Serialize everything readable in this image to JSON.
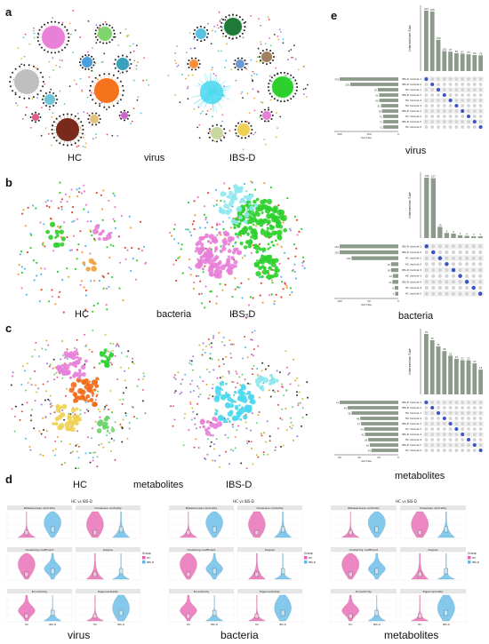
{
  "panel_labels": {
    "a": "a",
    "b": "b",
    "c": "c",
    "d": "d",
    "e": "e"
  },
  "networks": {
    "virus": {
      "left": "HC",
      "center": "virus",
      "right": "IBS-D"
    },
    "bacteria": {
      "left": "HC",
      "center": "bacteria",
      "right": "IBS-D"
    },
    "metabolites": {
      "left": "HC",
      "center": "metabolites",
      "right": "IBS-D"
    }
  },
  "upset": {
    "virus": {
      "caption": "virus",
      "ylabel": "Intersection Size",
      "xlabel": "Set Size",
      "bar_values": [
        302,
        298,
        156,
        100,
        97,
        89,
        87,
        84,
        80,
        78
      ],
      "set_values": [
        278,
        228,
        97,
        91,
        90,
        81,
        78,
        72,
        71,
        71
      ],
      "set_ticks": [
        "200",
        "100",
        "0"
      ],
      "set_names": [
        "IBS-D module 1",
        "IBS-D module 2",
        "HC module 1",
        "IBS-D module 3",
        "HC module 2",
        "HC module 3",
        "IBS-D module 4",
        "HC module 4",
        "IBS-D module 5",
        "HC module 5"
      ],
      "dot_pairs": [
        [
          0,
          0
        ],
        [
          1,
          1
        ],
        [
          2,
          2
        ],
        [
          3,
          3
        ],
        [
          4,
          4
        ],
        [
          5,
          5
        ],
        [
          6,
          6
        ],
        [
          7,
          7
        ],
        [
          8,
          8
        ],
        [
          9,
          9
        ]
      ]
    },
    "bacteria": {
      "caption": "bacteria",
      "ylabel": "Intersection Size",
      "xlabel": "Set Size",
      "bar_values": [
        108,
        107,
        20,
        9,
        8,
        5,
        4,
        3,
        3
      ],
      "set_values": [
        128,
        128,
        102,
        16,
        16,
        12,
        13,
        8,
        7
      ],
      "set_ticks": [
        "100",
        "50",
        "0"
      ],
      "set_names": [
        "IBS-D module 1",
        "IBS-D module 2",
        "HC module 1",
        "HC module 2",
        "IBS-D module 3",
        "HC module 3",
        "IBS-D module 4",
        "HC module 4",
        "HC module 5"
      ],
      "dot_pairs": [
        [
          0,
          0
        ],
        [
          1,
          1
        ],
        [
          2,
          2
        ],
        [
          3,
          3
        ],
        [
          4,
          4
        ],
        [
          5,
          5
        ],
        [
          6,
          6
        ],
        [
          7,
          7
        ],
        [
          8,
          8
        ]
      ]
    },
    "metabolites": {
      "caption": "metabolites",
      "ylabel": "Intersection Size",
      "xlabel": "Set Size",
      "bar_values": [
        39,
        35,
        31,
        28,
        25,
        23,
        22,
        22,
        20,
        16
      ],
      "set_values": [
        74,
        64,
        59,
        48,
        47,
        43,
        42,
        38,
        36,
        34
      ],
      "set_ticks": [
        "60",
        "40",
        "20",
        "0"
      ],
      "set_names": [
        "IBS-D module 1",
        "IBS-D module 2",
        "HC module 1",
        "HC module 2",
        "IBS-D module 3",
        "HC module 3",
        "IBS-D module 4",
        "HC module 4",
        "IBS-D module 5",
        "HC module 5"
      ],
      "dot_pairs": [
        [
          0,
          0
        ],
        [
          1,
          1
        ],
        [
          2,
          2
        ],
        [
          3,
          3
        ],
        [
          4,
          4
        ],
        [
          5,
          5
        ],
        [
          6,
          6
        ],
        [
          7,
          7
        ],
        [
          8,
          8
        ],
        [
          9,
          9
        ]
      ]
    }
  },
  "violins": {
    "virus": {
      "caption": "virus",
      "title": "HC vs IBS-D",
      "metrics": [
        "Betweenness centrality",
        "Closeness centrality",
        "Clustering coefficient",
        "Degree",
        "Eccentricity",
        "Eigencentrality"
      ],
      "groups": [
        "HC",
        "IBS-D"
      ],
      "legend_title": "Group"
    },
    "bacteria": {
      "caption": "bacteria",
      "title": "HC vs IBS-D",
      "metrics": [
        "Betweenness centrality",
        "Closeness centrality",
        "Clustering coefficient",
        "Degree",
        "Eccentricity",
        "Eigencentrality"
      ],
      "groups": [
        "HC",
        "IBS-D"
      ],
      "legend_title": "Group"
    },
    "metabolites": {
      "caption": "metabolites",
      "title": "HC vs IBS-D",
      "metrics": [
        "Betweenness centrality",
        "Closeness centrality",
        "Clustering coefficient",
        "Degree",
        "Eccentricity",
        "Eigencentrality"
      ],
      "groups": [
        "HC",
        "IBS-D"
      ],
      "legend_title": "Group"
    }
  },
  "colors": {
    "hc": "#e75fb0",
    "ibsd": "#5cb8e6",
    "bar": "#8c9a8a",
    "dot_on": "#3b55c7",
    "dot_off": "#d3d3d3"
  }
}
